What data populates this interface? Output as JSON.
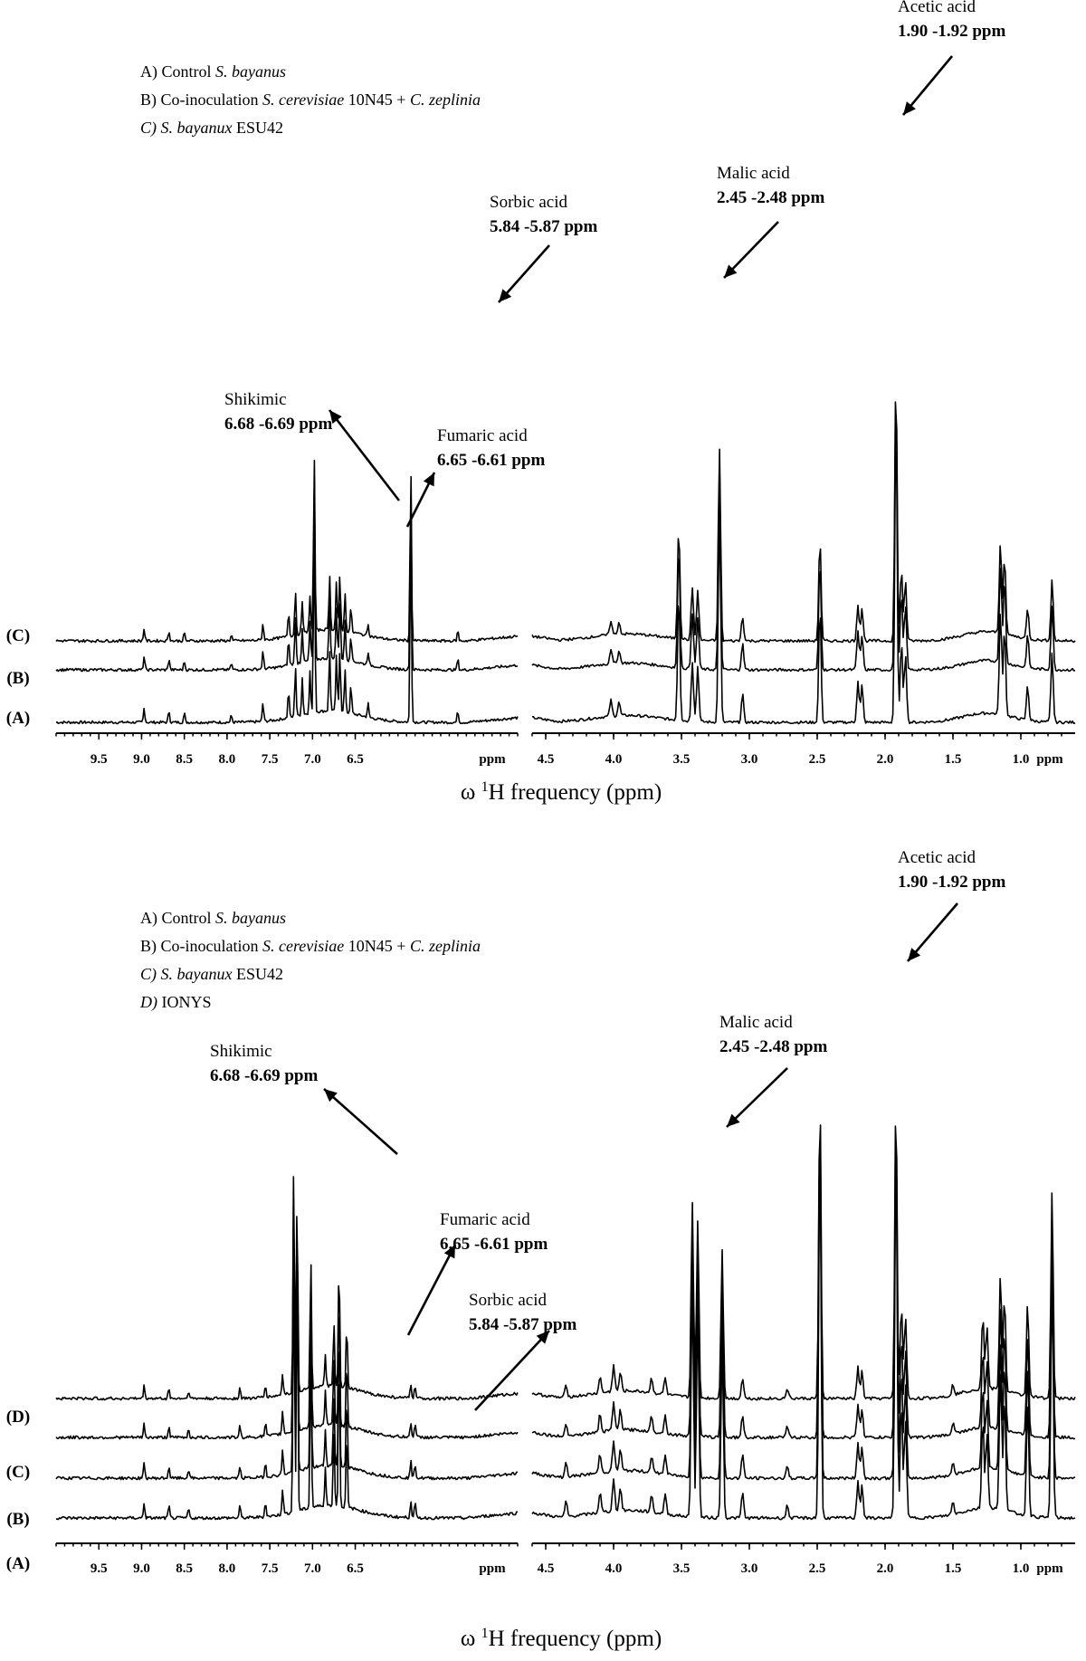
{
  "chart_data": [
    {
      "type": "line",
      "panel": "top",
      "xlabel": "ω 1H frequency (ppm)",
      "x_unit_label": "ppm",
      "x_reversed": true,
      "segments": [
        {
          "xlim": [
            10.0,
            4.6
          ],
          "ticks": [
            "9.5",
            "9.0",
            "8.5",
            "8.0",
            "7.5",
            "7.0",
            "6.5",
            "ppm"
          ]
        },
        {
          "xlim": [
            4.6,
            0.6
          ],
          "ticks": [
            "4.5",
            "4.0",
            "3.5",
            "3.0",
            "2.5",
            "2.0",
            "1.5",
            "1.0",
            "ppm"
          ]
        }
      ],
      "legend": [
        {
          "prefix": "A) Control ",
          "italic": "S. bayanus",
          "suffix": ""
        },
        {
          "prefix": "B) Co-inoculation ",
          "italic": "S. cerevisiae",
          "mid": " 10N45 + ",
          "italic2": "C. zeplinia"
        },
        {
          "prefix": "",
          "italic": "C) S. bayanux",
          "suffix": " ESU42"
        }
      ],
      "series": [
        {
          "name": "(A)",
          "values": [
            0.0
          ]
        },
        {
          "name": "(B)",
          "values": [
            0.0
          ]
        },
        {
          "name": "(C)",
          "values": [
            0.0
          ]
        }
      ],
      "peaks": [
        {
          "segment": 0,
          "ppm": 8.97,
          "h": 0.06
        },
        {
          "segment": 0,
          "ppm": 8.68,
          "h": 0.05
        },
        {
          "segment": 0,
          "ppm": 8.5,
          "h": 0.04
        },
        {
          "segment": 0,
          "ppm": 7.95,
          "h": 0.03
        },
        {
          "segment": 0,
          "ppm": 7.58,
          "h": 0.08
        },
        {
          "segment": 0,
          "ppm": 7.28,
          "h": 0.12
        },
        {
          "segment": 0,
          "ppm": 7.2,
          "h": 0.22
        },
        {
          "segment": 0,
          "ppm": 7.12,
          "h": 0.16
        },
        {
          "segment": 0,
          "ppm": 7.03,
          "h": 0.18
        },
        {
          "segment": 0,
          "ppm": 6.98,
          "h": 0.85
        },
        {
          "segment": 0,
          "ppm": 6.8,
          "h": 0.26
        },
        {
          "segment": 0,
          "ppm": 6.72,
          "h": 0.24
        },
        {
          "segment": 0,
          "ppm": 6.68,
          "h": 0.27
        },
        {
          "segment": 0,
          "ppm": 6.62,
          "h": 0.18
        },
        {
          "segment": 0,
          "ppm": 6.55,
          "h": 0.12
        },
        {
          "segment": 0,
          "ppm": 6.35,
          "h": 0.06
        },
        {
          "segment": 0,
          "ppm": 5.85,
          "h": 0.86
        },
        {
          "segment": 0,
          "ppm": 5.3,
          "h": 0.05
        },
        {
          "segment": 1,
          "ppm": 4.02,
          "h": 0.07
        },
        {
          "segment": 1,
          "ppm": 3.96,
          "h": 0.06
        },
        {
          "segment": 1,
          "ppm": 3.52,
          "h": 0.55
        },
        {
          "segment": 1,
          "ppm": 3.42,
          "h": 0.26
        },
        {
          "segment": 1,
          "ppm": 3.38,
          "h": 0.24
        },
        {
          "segment": 1,
          "ppm": 3.22,
          "h": 0.95
        },
        {
          "segment": 1,
          "ppm": 3.05,
          "h": 0.12
        },
        {
          "segment": 1,
          "ppm": 2.48,
          "h": 0.5
        },
        {
          "segment": 1,
          "ppm": 2.2,
          "h": 0.18
        },
        {
          "segment": 1,
          "ppm": 2.17,
          "h": 0.16
        },
        {
          "segment": 1,
          "ppm": 1.92,
          "h": 1.3
        },
        {
          "segment": 1,
          "ppm": 1.88,
          "h": 0.35
        },
        {
          "segment": 1,
          "ppm": 1.85,
          "h": 0.3
        },
        {
          "segment": 1,
          "ppm": 1.15,
          "h": 0.45
        },
        {
          "segment": 1,
          "ppm": 1.12,
          "h": 0.38
        },
        {
          "segment": 1,
          "ppm": 0.95,
          "h": 0.15
        },
        {
          "segment": 1,
          "ppm": 0.77,
          "h": 0.3
        }
      ],
      "annotations": [
        {
          "name": "Acetic acid",
          "range": "1.90 -1.92 ppm"
        },
        {
          "name": "Malic acid",
          "range": "2.45 -2.48 ppm"
        },
        {
          "name": "Sorbic acid",
          "range": "5.84 -5.87 ppm"
        },
        {
          "name": "Shikimic",
          "range": "6.68 -6.69 ppm"
        },
        {
          "name": "Fumaric acid",
          "range": "6.65 -6.61 ppm"
        }
      ]
    },
    {
      "type": "line",
      "panel": "bottom",
      "xlabel": "ω 1H frequency (ppm)",
      "x_unit_label": "ppm",
      "x_reversed": true,
      "segments": [
        {
          "xlim": [
            10.0,
            4.6
          ],
          "ticks": [
            "9.5",
            "9.0",
            "8.5",
            "8.0",
            "7.5",
            "7.0",
            "6.5",
            "ppm"
          ]
        },
        {
          "xlim": [
            4.6,
            0.6
          ],
          "ticks": [
            "4.5",
            "4.0",
            "3.5",
            "3.0",
            "2.5",
            "2.0",
            "1.5",
            "1.0",
            "ppm"
          ]
        }
      ],
      "legend": [
        {
          "prefix": "A) Control ",
          "italic": "S. bayanus",
          "suffix": ""
        },
        {
          "prefix": "B) Co-inoculation ",
          "italic": "S. cerevisiae",
          "mid": " 10N45 + ",
          "italic2": "C. zeplinia"
        },
        {
          "prefix": "",
          "italic": "C) S. bayanux",
          "suffix": " ESU42"
        },
        {
          "prefix": "",
          "italic": "D)",
          "suffix": " IONYS"
        }
      ],
      "series": [
        {
          "name": "(A)",
          "values": [
            0.0
          ]
        },
        {
          "name": "(B)",
          "values": [
            0.0
          ]
        },
        {
          "name": "(C)",
          "values": [
            0.0
          ]
        },
        {
          "name": "(D)",
          "values": [
            0.0
          ]
        }
      ],
      "peaks": [
        {
          "segment": 0,
          "ppm": 8.97,
          "h": 0.06
        },
        {
          "segment": 0,
          "ppm": 8.68,
          "h": 0.05
        },
        {
          "segment": 0,
          "ppm": 8.45,
          "h": 0.04
        },
        {
          "segment": 0,
          "ppm": 7.85,
          "h": 0.05
        },
        {
          "segment": 0,
          "ppm": 7.55,
          "h": 0.06
        },
        {
          "segment": 0,
          "ppm": 7.35,
          "h": 0.1
        },
        {
          "segment": 0,
          "ppm": 7.22,
          "h": 1.1
        },
        {
          "segment": 0,
          "ppm": 7.18,
          "h": 0.95
        },
        {
          "segment": 0,
          "ppm": 7.02,
          "h": 0.62
        },
        {
          "segment": 0,
          "ppm": 6.85,
          "h": 0.15
        },
        {
          "segment": 0,
          "ppm": 6.75,
          "h": 0.3
        },
        {
          "segment": 0,
          "ppm": 6.69,
          "h": 0.6
        },
        {
          "segment": 0,
          "ppm": 6.6,
          "h": 0.3
        },
        {
          "segment": 0,
          "ppm": 5.85,
          "h": 0.07
        },
        {
          "segment": 0,
          "ppm": 5.8,
          "h": 0.06
        },
        {
          "segment": 1,
          "ppm": 4.35,
          "h": 0.06
        },
        {
          "segment": 1,
          "ppm": 4.1,
          "h": 0.08
        },
        {
          "segment": 1,
          "ppm": 4.0,
          "h": 0.13
        },
        {
          "segment": 1,
          "ppm": 3.95,
          "h": 0.09
        },
        {
          "segment": 1,
          "ppm": 3.72,
          "h": 0.07
        },
        {
          "segment": 1,
          "ppm": 3.62,
          "h": 0.08
        },
        {
          "segment": 1,
          "ppm": 3.42,
          "h": 0.95
        },
        {
          "segment": 1,
          "ppm": 3.38,
          "h": 0.85
        },
        {
          "segment": 1,
          "ppm": 3.2,
          "h": 0.72
        },
        {
          "segment": 1,
          "ppm": 3.05,
          "h": 0.1
        },
        {
          "segment": 1,
          "ppm": 2.72,
          "h": 0.05
        },
        {
          "segment": 1,
          "ppm": 2.48,
          "h": 1.45
        },
        {
          "segment": 1,
          "ppm": 2.2,
          "h": 0.15
        },
        {
          "segment": 1,
          "ppm": 2.17,
          "h": 0.13
        },
        {
          "segment": 1,
          "ppm": 1.92,
          "h": 1.45
        },
        {
          "segment": 1,
          "ppm": 1.88,
          "h": 0.45
        },
        {
          "segment": 1,
          "ppm": 1.85,
          "h": 0.4
        },
        {
          "segment": 1,
          "ppm": 1.5,
          "h": 0.05
        },
        {
          "segment": 1,
          "ppm": 1.28,
          "h": 0.35
        },
        {
          "segment": 1,
          "ppm": 1.25,
          "h": 0.3
        },
        {
          "segment": 1,
          "ppm": 1.15,
          "h": 0.55
        },
        {
          "segment": 1,
          "ppm": 1.12,
          "h": 0.45
        },
        {
          "segment": 1,
          "ppm": 0.95,
          "h": 0.45
        },
        {
          "segment": 1,
          "ppm": 0.77,
          "h": 1.0
        }
      ],
      "annotations": [
        {
          "name": "Acetic acid",
          "range": "1.90 -1.92 ppm"
        },
        {
          "name": "Malic acid",
          "range": "2.45 -2.48 ppm"
        },
        {
          "name": "Shikimic",
          "range": "6.68 -6.69 ppm"
        },
        {
          "name": "Fumaric acid",
          "range": "6.65 -6.61 ppm"
        },
        {
          "name": "Sorbic acid",
          "range": "5.84 -5.87 ppm"
        }
      ]
    }
  ]
}
